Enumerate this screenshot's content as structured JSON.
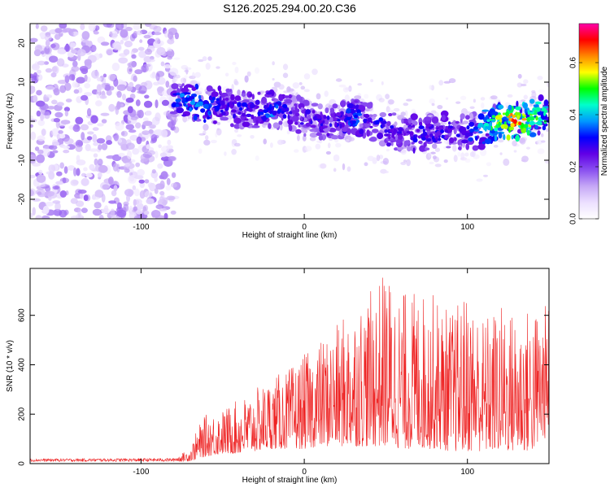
{
  "title": "S126.2025.294.00.20.C36",
  "chart_data": [
    {
      "type": "heatmap",
      "title": "S126.2025.294.00.20.C36",
      "xlabel": "Height of straight line (km)",
      "ylabel": "Frequency (Hz)",
      "xlim": [
        -168,
        150
      ],
      "ylim": [
        -25,
        25
      ],
      "xticks": [
        -100,
        0,
        100
      ],
      "yticks": [
        -20,
        -10,
        0,
        10,
        20
      ],
      "colorbar": {
        "label": "Normalized spectral amplitude",
        "range": [
          0.0,
          0.75
        ],
        "ticks": [
          0.0,
          0.2,
          0.4,
          0.6
        ],
        "colors": [
          "#ffffff",
          "#ece0ff",
          "#c6a8f6",
          "#8a4ff0",
          "#6100e6",
          "#0000ff",
          "#0099ff",
          "#00ffcc",
          "#00ff00",
          "#ffff00",
          "#ff8800",
          "#ff0000",
          "#ff00aa"
        ]
      },
      "ridge": {
        "x": [
          -80,
          -70,
          -60,
          -50,
          -40,
          -30,
          -20,
          -10,
          0,
          10,
          20,
          30,
          40,
          50,
          60,
          70,
          80,
          90,
          100,
          110,
          120,
          130,
          140,
          150
        ],
        "center_hz": [
          6,
          5,
          4,
          4,
          3,
          3,
          3,
          3,
          1,
          0,
          0,
          1,
          0,
          -2,
          -3,
          -3,
          -3,
          -2,
          -3,
          -2,
          0,
          0,
          1,
          2
        ],
        "peak_amplitude": [
          0.35,
          0.4,
          0.38,
          0.3,
          0.32,
          0.3,
          0.38,
          0.3,
          0.28,
          0.3,
          0.3,
          0.38,
          0.3,
          0.32,
          0.28,
          0.32,
          0.3,
          0.3,
          0.32,
          0.42,
          0.6,
          0.7,
          0.55,
          0.5
        ]
      },
      "noise_region_x": [
        -168,
        -78
      ]
    },
    {
      "type": "line",
      "xlabel": "Height of straight line (km)",
      "ylabel": "SNR (10 * v/v)",
      "xlim": [
        -168,
        150
      ],
      "ylim": [
        0,
        790
      ],
      "xticks": [
        -100,
        0,
        100
      ],
      "yticks": [
        0,
        200,
        400,
        600
      ],
      "color": "#ee2222",
      "series": [
        {
          "name": "SNR",
          "envelope_x": [
            -168,
            -80,
            -70,
            -65,
            -60,
            -50,
            -40,
            -30,
            -20,
            -10,
            0,
            10,
            20,
            30,
            40,
            50,
            60,
            70,
            80,
            90,
            100,
            110,
            120,
            130,
            140,
            150
          ],
          "envelope_max": [
            20,
            22,
            60,
            150,
            200,
            220,
            260,
            300,
            350,
            380,
            440,
            500,
            560,
            650,
            690,
            790,
            700,
            700,
            690,
            620,
            700,
            600,
            650,
            620,
            640,
            650
          ],
          "envelope_min": [
            8,
            8,
            10,
            20,
            30,
            40,
            40,
            50,
            60,
            60,
            60,
            70,
            70,
            70,
            70,
            70,
            60,
            60,
            60,
            50,
            50,
            50,
            50,
            50,
            50,
            120
          ]
        }
      ]
    }
  ]
}
